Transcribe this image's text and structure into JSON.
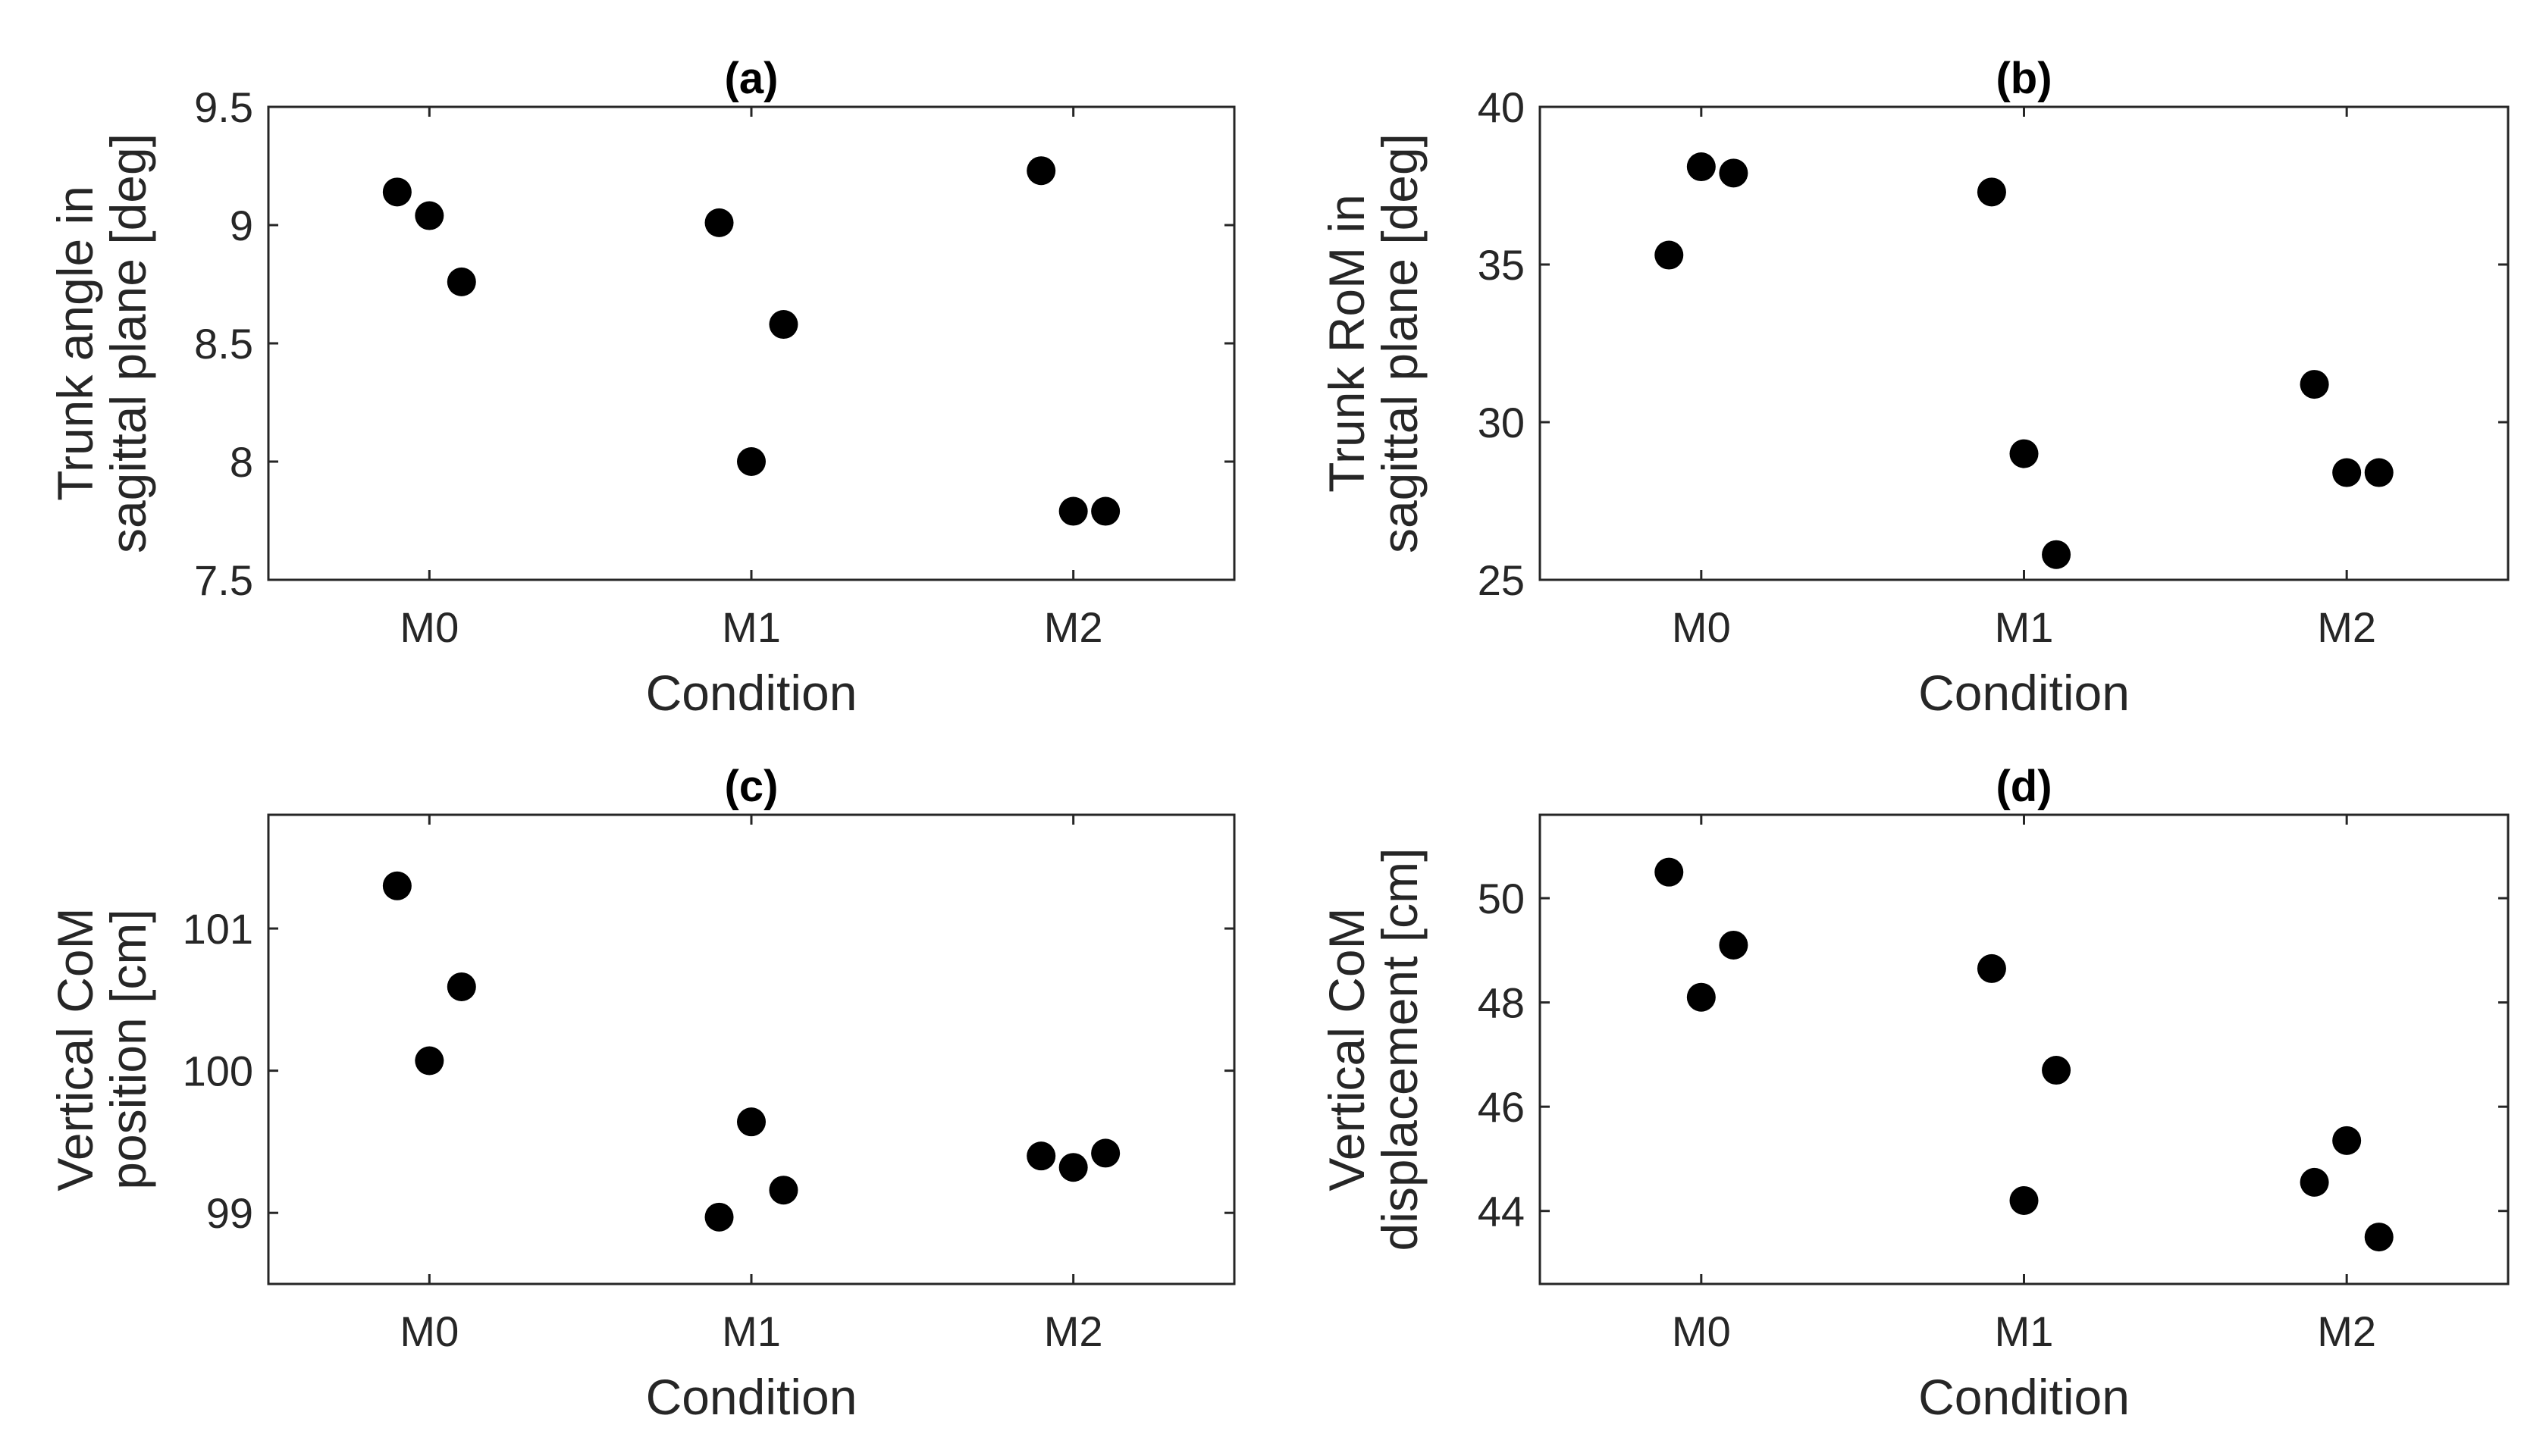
{
  "chart_data": [
    {
      "type": "scatter",
      "title": "(a)",
      "xlabel": "Condition",
      "ylabel": [
        "Trunk angle in",
        "sagittal plane [deg]"
      ],
      "categories": [
        "M0",
        "M1",
        "M2"
      ],
      "ylim": [
        7.5,
        9.5
      ],
      "yticks": [
        7.5,
        8,
        8.5,
        9,
        9.5
      ],
      "ytick_labels": [
        "7.5",
        "8",
        "8.5",
        "9",
        "9.5"
      ],
      "points": [
        {
          "x": -0.1,
          "y": 9.14
        },
        {
          "x": 0.0,
          "y": 9.04
        },
        {
          "x": 0.1,
          "y": 8.76
        },
        {
          "x": 0.9,
          "y": 9.01
        },
        {
          "x": 1.0,
          "y": 8.0
        },
        {
          "x": 1.1,
          "y": 8.58
        },
        {
          "x": 1.9,
          "y": 9.23
        },
        {
          "x": 2.0,
          "y": 7.79
        },
        {
          "x": 2.1,
          "y": 7.79
        }
      ]
    },
    {
      "type": "scatter",
      "title": "(b)",
      "xlabel": "Condition",
      "ylabel": [
        "Trunk RoM in",
        "sagittal plane [deg]"
      ],
      "categories": [
        "M0",
        "M1",
        "M2"
      ],
      "ylim": [
        25,
        40
      ],
      "yticks": [
        25,
        30,
        35,
        40
      ],
      "ytick_labels": [
        "25",
        "30",
        "35",
        "40"
      ],
      "points": [
        {
          "x": -0.1,
          "y": 35.3
        },
        {
          "x": 0.0,
          "y": 38.1
        },
        {
          "x": 0.1,
          "y": 37.9
        },
        {
          "x": 0.9,
          "y": 37.3
        },
        {
          "x": 1.0,
          "y": 29.0
        },
        {
          "x": 1.1,
          "y": 25.8
        },
        {
          "x": 1.9,
          "y": 31.2
        },
        {
          "x": 2.0,
          "y": 28.4
        },
        {
          "x": 2.1,
          "y": 28.4
        }
      ]
    },
    {
      "type": "scatter",
      "title": "(c)",
      "xlabel": "Condition",
      "ylabel": [
        "Vertical CoM",
        "position [cm]"
      ],
      "categories": [
        "M0",
        "M1",
        "M2"
      ],
      "ylim": [
        98.5,
        101.8
      ],
      "yticks": [
        99,
        100,
        101
      ],
      "ytick_labels": [
        "99",
        "100",
        "101"
      ],
      "points": [
        {
          "x": -0.1,
          "y": 101.3
        },
        {
          "x": 0.0,
          "y": 100.07
        },
        {
          "x": 0.1,
          "y": 100.59
        },
        {
          "x": 0.9,
          "y": 98.97
        },
        {
          "x": 1.0,
          "y": 99.64
        },
        {
          "x": 1.1,
          "y": 99.16
        },
        {
          "x": 1.9,
          "y": 99.4
        },
        {
          "x": 2.0,
          "y": 99.32
        },
        {
          "x": 2.1,
          "y": 99.42
        }
      ]
    },
    {
      "type": "scatter",
      "title": "(d)",
      "xlabel": "Condition",
      "ylabel": [
        "Vertical CoM",
        "displacement [cm]"
      ],
      "categories": [
        "M0",
        "M1",
        "M2"
      ],
      "ylim": [
        42.6,
        51.6
      ],
      "yticks": [
        44,
        46,
        48,
        50
      ],
      "ytick_labels": [
        "44",
        "46",
        "48",
        "50"
      ],
      "points": [
        {
          "x": -0.1,
          "y": 50.5
        },
        {
          "x": 0.0,
          "y": 48.1
        },
        {
          "x": 0.1,
          "y": 49.1
        },
        {
          "x": 0.9,
          "y": 48.65
        },
        {
          "x": 1.0,
          "y": 44.2
        },
        {
          "x": 1.1,
          "y": 46.7
        },
        {
          "x": 1.9,
          "y": 44.55
        },
        {
          "x": 2.0,
          "y": 45.35
        },
        {
          "x": 2.1,
          "y": 43.5
        }
      ]
    }
  ]
}
